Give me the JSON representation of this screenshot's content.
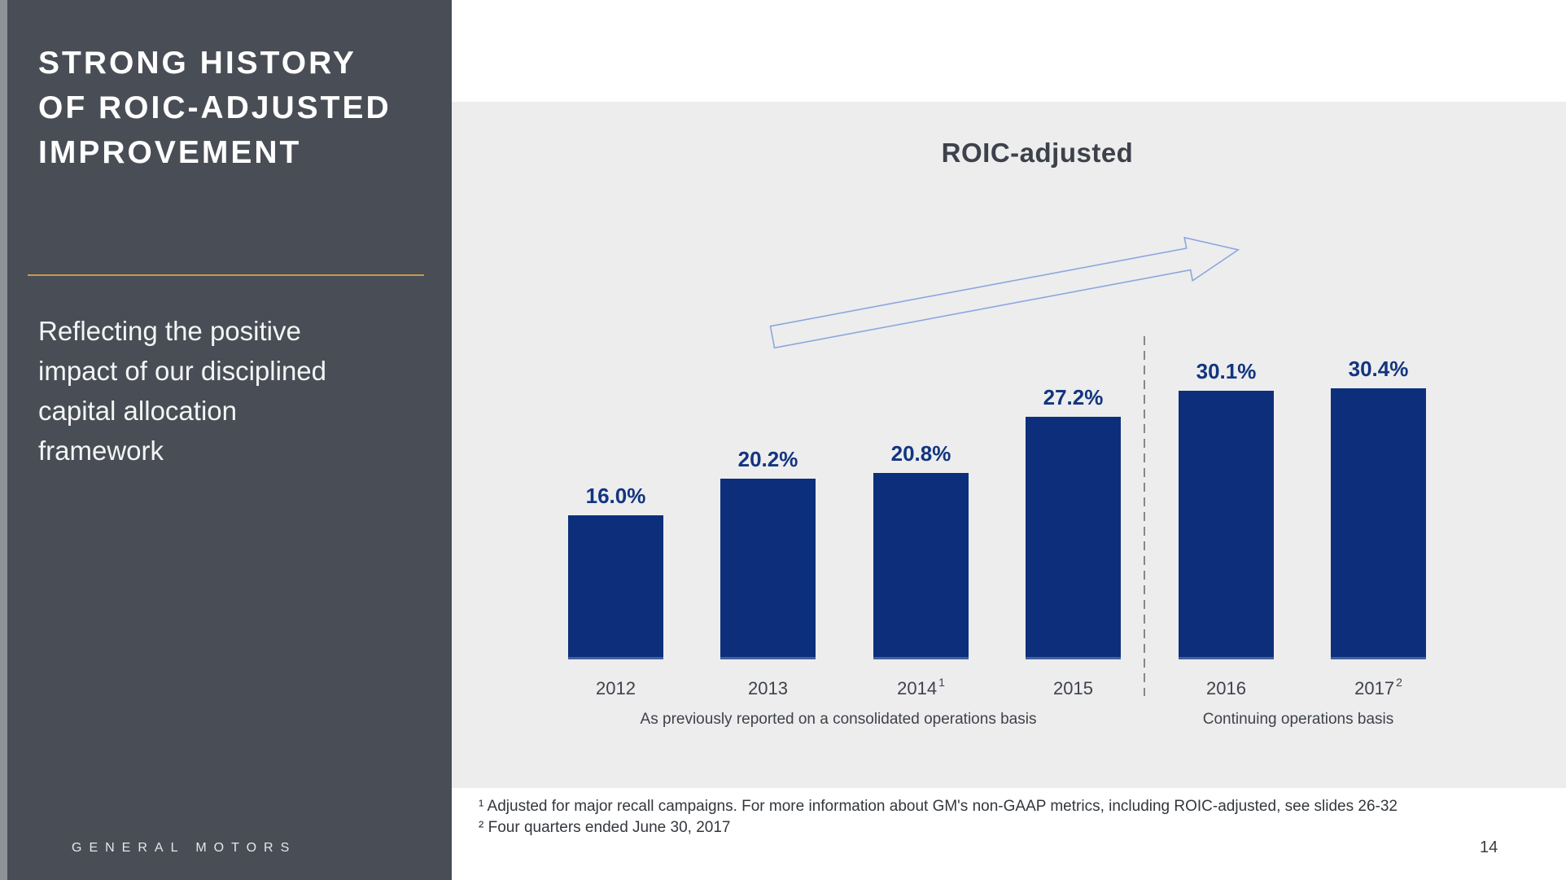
{
  "sidebar": {
    "title_lines": [
      "STRONG HISTORY",
      "OF ROIC-ADJUSTED",
      "IMPROVEMENT"
    ],
    "subtitle_lines": [
      "Reflecting the positive",
      "impact of our disciplined",
      "capital allocation",
      "framework"
    ],
    "brand": "GENERAL MOTORS",
    "accent_color": "#c79a4d",
    "bg_color": "#494d55"
  },
  "chart": {
    "title": "ROIC-adjusted",
    "group_captions": [
      "As previously reported on a consolidated operations basis",
      "Continuing operations basis"
    ],
    "panel_color": "#ededee"
  },
  "chart_data": {
    "type": "bar",
    "title": "ROIC-adjusted",
    "categories": [
      "2012",
      "2013",
      "2014",
      "2015",
      "2016",
      "2017"
    ],
    "values": [
      16.0,
      20.2,
      20.8,
      27.2,
      30.1,
      30.4
    ],
    "value_labels": [
      "16.0%",
      "20.2%",
      "20.8%",
      "27.2%",
      "30.1%",
      "30.4%"
    ],
    "category_superscripts": [
      "",
      "",
      "1",
      "",
      "",
      "2"
    ],
    "ylim": [
      0,
      33
    ],
    "grid": "off",
    "legend": "none",
    "bar_color": "#0d2f7b",
    "value_label_color": "#12357f",
    "group_split_after": "2015",
    "group_labels": [
      "As previously reported on a consolidated operations basis",
      "Continuing operations basis"
    ],
    "annotations": [
      "upward-trend outline arrow",
      "vertical dashed divider between 2015 and 2016"
    ]
  },
  "footnotes": [
    "¹ Adjusted for major recall campaigns. For more information about GM's non-GAAP metrics, including ROIC-adjusted, see slides 26-32",
    "² Four quarters ended June 30, 2017"
  ],
  "page_number": "14"
}
